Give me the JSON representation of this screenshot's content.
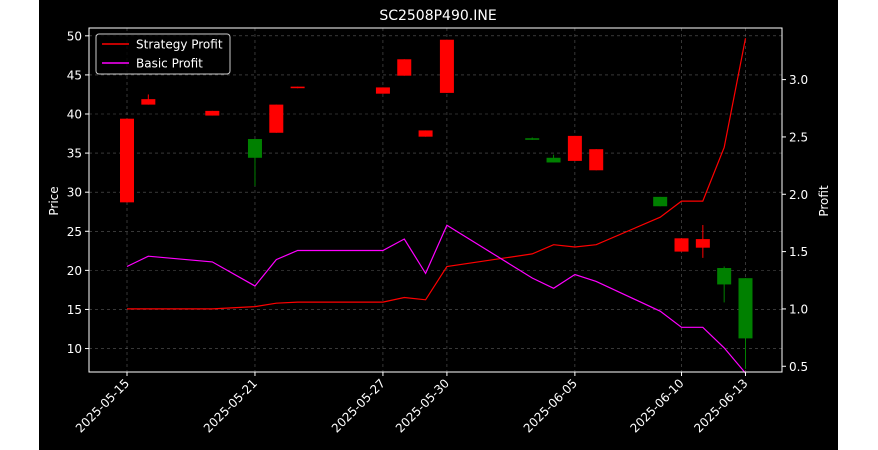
{
  "chart_data": {
    "type": "candlestick",
    "title": "SC2508P490.INE",
    "xlabel": "",
    "ylabel": "Price",
    "y2label": "Profit",
    "ylim": [
      7,
      51
    ],
    "y2lim": [
      0.45,
      3.45
    ],
    "yticks": [
      10,
      15,
      20,
      25,
      30,
      35,
      40,
      45,
      50
    ],
    "y2ticks": [
      0.5,
      1.0,
      1.5,
      2.0,
      2.5,
      3.0
    ],
    "xticks": [
      "2025-05-15",
      "2025-05-21",
      "2025-05-27",
      "2025-05-30",
      "2025-06-05",
      "2025-06-10",
      "2025-06-13"
    ],
    "grid": true,
    "legend_position": "top-left",
    "dates": [
      "2025-05-15",
      "2025-05-16",
      "2025-05-19",
      "2025-05-21",
      "2025-05-22",
      "2025-05-23",
      "2025-05-27",
      "2025-05-28",
      "2025-05-29",
      "2025-05-30",
      "2025-06-03",
      "2025-06-04",
      "2025-06-05",
      "2025-06-06",
      "2025-06-09",
      "2025-06-10",
      "2025-06-11",
      "2025-06-12",
      "2025-06-13"
    ],
    "candles": [
      {
        "open": 39.4,
        "high": 39.4,
        "low": 28.7,
        "close": 28.7
      },
      {
        "open": 41.9,
        "high": 42.5,
        "low": 41.2,
        "close": 41.2
      },
      {
        "open": 40.4,
        "high": 40.4,
        "low": 39.8,
        "close": 39.8
      },
      {
        "open": 34.4,
        "high": 36.8,
        "low": 30.8,
        "close": 36.8
      },
      {
        "open": 41.2,
        "high": 41.2,
        "low": 37.6,
        "close": 37.6
      },
      {
        "open": 43.5,
        "high": 43.5,
        "low": 43.3,
        "close": 43.3
      },
      {
        "open": 43.4,
        "high": 43.4,
        "low": 42.6,
        "close": 42.6
      },
      {
        "open": 47.0,
        "high": 47.0,
        "low": 44.9,
        "close": 44.9
      },
      {
        "open": 37.9,
        "high": 37.9,
        "low": 37.1,
        "close": 37.1
      },
      {
        "open": 49.5,
        "high": 49.5,
        "low": 42.7,
        "close": 42.7
      },
      {
        "open": 36.7,
        "high": 37.0,
        "low": 36.7,
        "close": 36.9
      },
      {
        "open": 33.8,
        "high": 34.8,
        "low": 33.8,
        "close": 34.4
      },
      {
        "open": 37.2,
        "high": 37.2,
        "low": 34.0,
        "close": 34.0
      },
      {
        "open": 35.5,
        "high": 35.5,
        "low": 32.8,
        "close": 32.8
      },
      {
        "open": 28.2,
        "high": 29.4,
        "low": 28.2,
        "close": 29.4
      },
      {
        "open": 24.1,
        "high": 24.1,
        "low": 22.4,
        "close": 22.4
      },
      {
        "open": 24.0,
        "high": 25.8,
        "low": 21.6,
        "close": 22.9
      },
      {
        "open": 18.2,
        "high": 20.5,
        "low": 15.9,
        "close": 20.3
      },
      {
        "open": 11.3,
        "high": 19.0,
        "low": 7.4,
        "close": 19.0
      }
    ],
    "series": [
      {
        "name": "Strategy Profit",
        "color": "#ff0000",
        "values": [
          1.0,
          1.0,
          1.0,
          1.02,
          1.05,
          1.06,
          1.06,
          1.1,
          1.08,
          1.37,
          1.48,
          1.56,
          1.54,
          1.56,
          1.8,
          1.94,
          1.94,
          2.41,
          3.36
        ]
      },
      {
        "name": "Basic Profit",
        "color": "#ff00ff",
        "values": [
          1.37,
          1.46,
          1.41,
          1.2,
          1.43,
          1.51,
          1.51,
          1.61,
          1.31,
          1.73,
          1.27,
          1.18,
          1.3,
          1.24,
          0.98,
          0.84,
          0.84,
          0.66,
          0.44
        ]
      }
    ],
    "up_color": "#008000",
    "down_color": "#ff0000"
  }
}
